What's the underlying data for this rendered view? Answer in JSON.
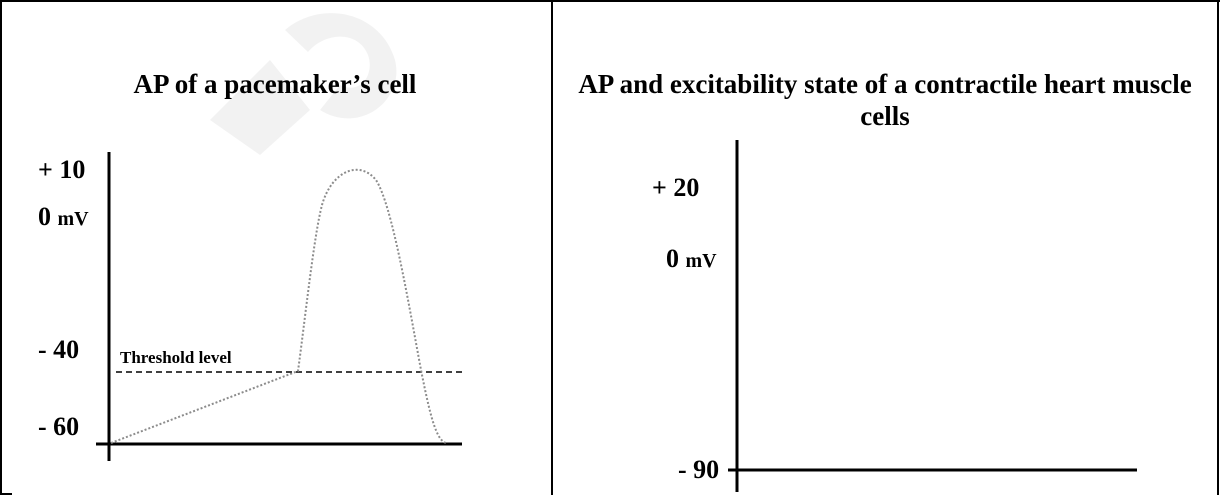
{
  "left_panel": {
    "title": "AP of a pacemaker’s cell",
    "y_labels": {
      "plus10": "+ 10",
      "zero": "0",
      "unit": "mV",
      "minus40": "- 40",
      "minus60": "- 60"
    },
    "threshold_label": "Threshold level"
  },
  "right_panel": {
    "title": "AP and excitability state of a contractile heart muscle cells",
    "y_labels": {
      "plus20": "+ 20",
      "zero": "0",
      "unit": "mV",
      "minus90": "- 90"
    }
  },
  "colors": {
    "axis": "#000000",
    "trace": "#8c8c8c",
    "watermark": "#9a9a9a"
  }
}
